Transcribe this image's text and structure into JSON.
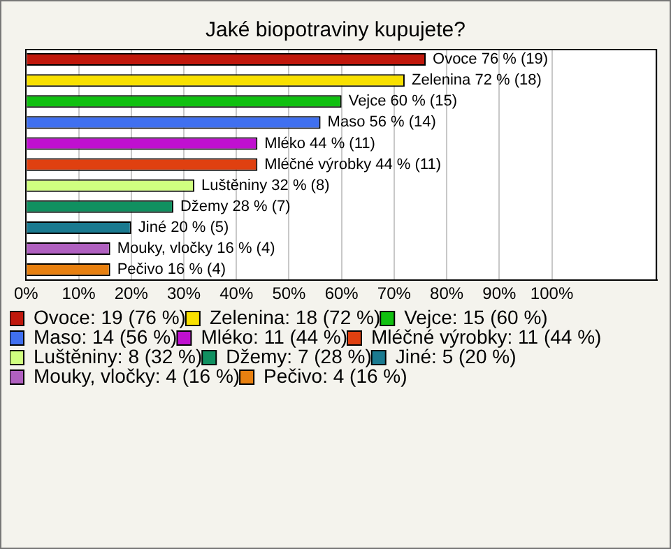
{
  "chart_data": {
    "type": "bar",
    "orientation": "horizontal",
    "title": "Jaké biopotraviny kupujete?",
    "categories": [
      null,
      null,
      null,
      null,
      null,
      null,
      null,
      null,
      null,
      null,
      null
    ],
    "series": [
      {
        "name": "Ovoce: 19 (76 %)",
        "color": "#c0180c",
        "values": [
          76,
          null,
          null,
          null,
          null,
          null,
          null,
          null,
          null,
          null,
          null
        ],
        "value_labels": [
          "Ovoce 76 % (19)",
          null,
          null,
          null,
          null,
          null,
          null,
          null,
          null,
          null,
          null
        ]
      },
      {
        "name": "Zelenina: 18 (72 %)",
        "color": "#f8e000",
        "values": [
          null,
          72,
          null,
          null,
          null,
          null,
          null,
          null,
          null,
          null,
          null
        ],
        "value_labels": [
          null,
          "Zelenina 72 % (18)",
          null,
          null,
          null,
          null,
          null,
          null,
          null,
          null,
          null
        ]
      },
      {
        "name": "Vejce: 15 (60 %)",
        "color": "#10c010",
        "values": [
          null,
          null,
          60,
          null,
          null,
          null,
          null,
          null,
          null,
          null,
          null
        ],
        "value_labels": [
          null,
          null,
          "Vejce 60 % (15)",
          null,
          null,
          null,
          null,
          null,
          null,
          null,
          null
        ]
      },
      {
        "name": "Maso: 14 (56 %)",
        "color": "#4070f0",
        "values": [
          null,
          null,
          null,
          56,
          null,
          null,
          null,
          null,
          null,
          null,
          null
        ],
        "value_labels": [
          null,
          null,
          null,
          "Maso 56 % (14)",
          null,
          null,
          null,
          null,
          null,
          null,
          null
        ]
      },
      {
        "name": "Mléko: 11 (44 %)",
        "color": "#c010d0",
        "values": [
          null,
          null,
          null,
          null,
          44,
          null,
          null,
          null,
          null,
          null,
          null
        ],
        "value_labels": [
          null,
          null,
          null,
          null,
          "Mléko 44 % (11)",
          null,
          null,
          null,
          null,
          null,
          null
        ]
      },
      {
        "name": "Mléčné výrobky: 11 (44 %)",
        "color": "#e04010",
        "values": [
          null,
          null,
          null,
          null,
          null,
          44,
          null,
          null,
          null,
          null,
          null
        ],
        "value_labels": [
          null,
          null,
          null,
          null,
          null,
          "Mléčné výrobky 44 % (11)",
          null,
          null,
          null,
          null,
          null
        ]
      },
      {
        "name": "Luštěniny: 8 (32 %)",
        "color": "#d0ff80",
        "values": [
          null,
          null,
          null,
          null,
          null,
          null,
          32,
          null,
          null,
          null,
          null
        ],
        "value_labels": [
          null,
          null,
          null,
          null,
          null,
          null,
          "Luštěniny 32 % (8)",
          null,
          null,
          null,
          null
        ]
      },
      {
        "name": "Džemy: 7 (28 %)",
        "color": "#109060",
        "values": [
          null,
          null,
          null,
          null,
          null,
          null,
          null,
          28,
          null,
          null,
          null
        ],
        "value_labels": [
          null,
          null,
          null,
          null,
          null,
          null,
          null,
          "Džemy 28 % (7)",
          null,
          null,
          null
        ]
      },
      {
        "name": "Jiné: 5 (20 %)",
        "color": "#1a7a90",
        "values": [
          null,
          null,
          null,
          null,
          null,
          null,
          null,
          null,
          20,
          null,
          null
        ],
        "value_labels": [
          null,
          null,
          null,
          null,
          null,
          null,
          null,
          null,
          "Jiné 20 % (5)",
          null,
          null
        ]
      },
      {
        "name": "Mouky, vločky: 4 (16 %)",
        "color": "#b060c0",
        "values": [
          null,
          null,
          null,
          null,
          null,
          null,
          null,
          null,
          null,
          16,
          null
        ],
        "value_labels": [
          null,
          null,
          null,
          null,
          null,
          null,
          null,
          null,
          null,
          "Mouky, vločky 16 % (4)",
          null
        ]
      },
      {
        "name": "Pečivo: 4 (16 %)",
        "color": "#e88010",
        "values": [
          null,
          null,
          null,
          null,
          null,
          null,
          null,
          null,
          null,
          null,
          16
        ],
        "value_labels": [
          null,
          null,
          null,
          null,
          null,
          null,
          null,
          null,
          null,
          null,
          "Pečivo 16 % (4)"
        ]
      }
    ],
    "xlim": [
      0,
      120
    ],
    "xticks": [
      {
        "value": 0,
        "label": "0%"
      },
      {
        "value": 10,
        "label": "10%"
      },
      {
        "value": 20,
        "label": "20%"
      },
      {
        "value": 30,
        "label": "30%"
      },
      {
        "value": 40,
        "label": "40%"
      },
      {
        "value": 50,
        "label": "50%"
      },
      {
        "value": 60,
        "label": "60%"
      },
      {
        "value": 70,
        "label": "70%"
      },
      {
        "value": 80,
        "label": "80%"
      },
      {
        "value": 90,
        "label": "90%"
      },
      {
        "value": 100,
        "label": "100%"
      },
      {
        "value": 120,
        "label": null
      }
    ],
    "grid": "x",
    "tick_labels": "x",
    "legend": "bottom"
  }
}
